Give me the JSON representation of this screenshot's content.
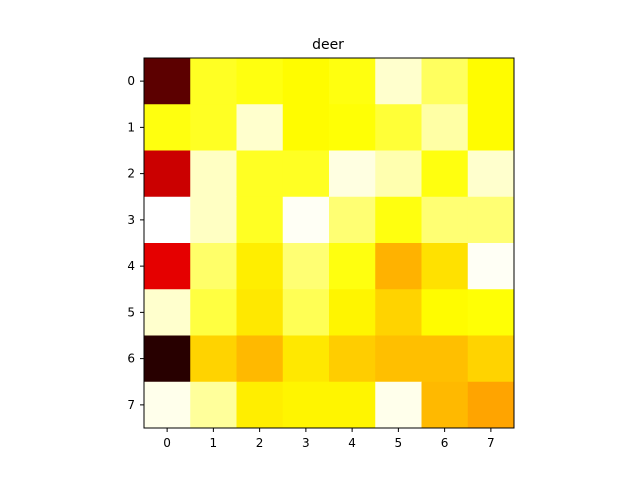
{
  "chart_data": {
    "type": "heatmap",
    "title": "deer",
    "colormap": "hot",
    "rows": [
      "0",
      "1",
      "2",
      "3",
      "4",
      "5",
      "6",
      "7"
    ],
    "cols": [
      "0",
      "1",
      "2",
      "3",
      "4",
      "5",
      "6",
      "7"
    ],
    "values": [
      [
        0.1,
        0.78,
        0.76,
        0.74,
        0.76,
        0.95,
        0.84,
        0.74
      ],
      [
        0.76,
        0.78,
        0.95,
        0.74,
        0.75,
        0.8,
        0.91,
        0.74
      ],
      [
        0.27,
        0.94,
        0.78,
        0.78,
        0.97,
        0.92,
        0.76,
        0.95
      ],
      [
        1.0,
        0.94,
        0.78,
        0.99,
        0.86,
        0.76,
        0.86,
        0.86
      ],
      [
        0.31,
        0.85,
        0.72,
        0.86,
        0.76,
        0.63,
        0.7,
        0.99
      ],
      [
        0.95,
        0.81,
        0.71,
        0.83,
        0.73,
        0.68,
        0.74,
        0.75
      ],
      [
        0.02,
        0.68,
        0.64,
        0.71,
        0.67,
        0.65,
        0.65,
        0.68
      ],
      [
        0.98,
        0.9,
        0.72,
        0.73,
        0.73,
        0.98,
        0.64,
        0.61
      ]
    ],
    "vmin": 0,
    "vmax": 1,
    "grid": false,
    "legend": "none"
  }
}
